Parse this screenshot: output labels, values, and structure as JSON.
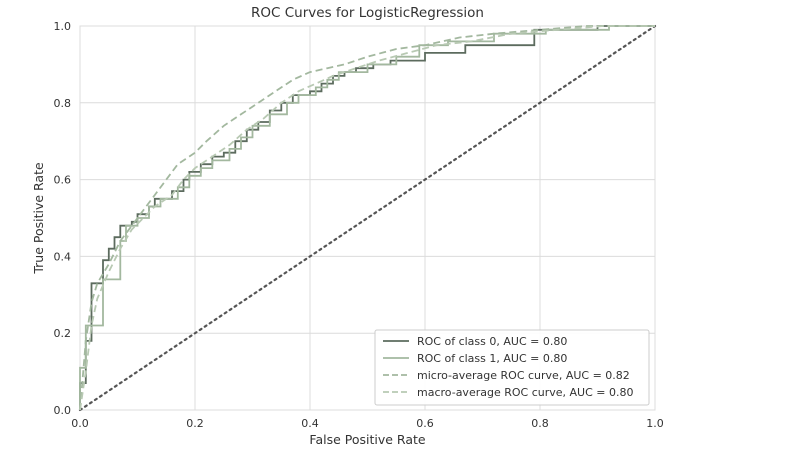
{
  "chart_data": {
    "type": "line",
    "title": "ROC Curves for LogisticRegression",
    "xlabel": "False Positive Rate",
    "ylabel": "True Positive Rate",
    "xlim": [
      0.0,
      1.0
    ],
    "ylim": [
      0.0,
      1.0
    ],
    "xticks": [
      "0.0",
      "0.2",
      "0.4",
      "0.6",
      "0.8",
      "1.0"
    ],
    "yticks": [
      "0.0",
      "0.2",
      "0.4",
      "0.6",
      "0.8",
      "1.0"
    ],
    "grid": true,
    "legend_position": "lower-right",
    "series": [
      {
        "name": "ROC of class 0, AUC = 0.80",
        "style": "solid",
        "color": "#5c6b5e",
        "points": [
          [
            0,
            0
          ],
          [
            0,
            0.07
          ],
          [
            0.01,
            0.07
          ],
          [
            0.01,
            0.18
          ],
          [
            0.02,
            0.18
          ],
          [
            0.02,
            0.33
          ],
          [
            0.04,
            0.33
          ],
          [
            0.04,
            0.39
          ],
          [
            0.05,
            0.39
          ],
          [
            0.05,
            0.42
          ],
          [
            0.06,
            0.42
          ],
          [
            0.06,
            0.45
          ],
          [
            0.07,
            0.45
          ],
          [
            0.07,
            0.48
          ],
          [
            0.09,
            0.48
          ],
          [
            0.09,
            0.49
          ],
          [
            0.1,
            0.49
          ],
          [
            0.1,
            0.51
          ],
          [
            0.12,
            0.51
          ],
          [
            0.12,
            0.53
          ],
          [
            0.13,
            0.53
          ],
          [
            0.13,
            0.55
          ],
          [
            0.16,
            0.55
          ],
          [
            0.16,
            0.57
          ],
          [
            0.18,
            0.57
          ],
          [
            0.18,
            0.6
          ],
          [
            0.19,
            0.6
          ],
          [
            0.19,
            0.62
          ],
          [
            0.21,
            0.62
          ],
          [
            0.21,
            0.64
          ],
          [
            0.23,
            0.64
          ],
          [
            0.23,
            0.66
          ],
          [
            0.25,
            0.66
          ],
          [
            0.25,
            0.67
          ],
          [
            0.27,
            0.67
          ],
          [
            0.27,
            0.7
          ],
          [
            0.29,
            0.7
          ],
          [
            0.29,
            0.73
          ],
          [
            0.31,
            0.73
          ],
          [
            0.31,
            0.75
          ],
          [
            0.33,
            0.75
          ],
          [
            0.33,
            0.78
          ],
          [
            0.35,
            0.78
          ],
          [
            0.35,
            0.8
          ],
          [
            0.37,
            0.8
          ],
          [
            0.37,
            0.82
          ],
          [
            0.4,
            0.82
          ],
          [
            0.4,
            0.83
          ],
          [
            0.42,
            0.83
          ],
          [
            0.42,
            0.85
          ],
          [
            0.44,
            0.85
          ],
          [
            0.44,
            0.87
          ],
          [
            0.46,
            0.87
          ],
          [
            0.46,
            0.88
          ],
          [
            0.48,
            0.88
          ],
          [
            0.48,
            0.89
          ],
          [
            0.51,
            0.89
          ],
          [
            0.51,
            0.9
          ],
          [
            0.54,
            0.9
          ],
          [
            0.54,
            0.91
          ],
          [
            0.6,
            0.91
          ],
          [
            0.6,
            0.93
          ],
          [
            0.67,
            0.93
          ],
          [
            0.67,
            0.95
          ],
          [
            0.79,
            0.95
          ],
          [
            0.79,
            0.99
          ],
          [
            0.9,
            0.99
          ],
          [
            0.9,
            1.0
          ],
          [
            1.0,
            1.0
          ]
        ]
      },
      {
        "name": "ROC of class 1, AUC = 0.80",
        "style": "solid",
        "color": "#a3b89f",
        "points": [
          [
            0,
            0
          ],
          [
            0,
            0.11
          ],
          [
            0.01,
            0.11
          ],
          [
            0.01,
            0.22
          ],
          [
            0.04,
            0.22
          ],
          [
            0.04,
            0.34
          ],
          [
            0.07,
            0.34
          ],
          [
            0.07,
            0.44
          ],
          [
            0.08,
            0.44
          ],
          [
            0.08,
            0.48
          ],
          [
            0.1,
            0.48
          ],
          [
            0.1,
            0.5
          ],
          [
            0.12,
            0.5
          ],
          [
            0.12,
            0.53
          ],
          [
            0.14,
            0.53
          ],
          [
            0.14,
            0.55
          ],
          [
            0.17,
            0.55
          ],
          [
            0.17,
            0.58
          ],
          [
            0.19,
            0.58
          ],
          [
            0.19,
            0.61
          ],
          [
            0.21,
            0.61
          ],
          [
            0.21,
            0.63
          ],
          [
            0.23,
            0.63
          ],
          [
            0.23,
            0.65
          ],
          [
            0.26,
            0.65
          ],
          [
            0.26,
            0.68
          ],
          [
            0.28,
            0.68
          ],
          [
            0.28,
            0.71
          ],
          [
            0.3,
            0.71
          ],
          [
            0.3,
            0.74
          ],
          [
            0.33,
            0.74
          ],
          [
            0.33,
            0.77
          ],
          [
            0.36,
            0.77
          ],
          [
            0.36,
            0.8
          ],
          [
            0.38,
            0.8
          ],
          [
            0.38,
            0.82
          ],
          [
            0.41,
            0.82
          ],
          [
            0.41,
            0.84
          ],
          [
            0.43,
            0.84
          ],
          [
            0.43,
            0.86
          ],
          [
            0.45,
            0.86
          ],
          [
            0.45,
            0.88
          ],
          [
            0.5,
            0.88
          ],
          [
            0.5,
            0.9
          ],
          [
            0.55,
            0.9
          ],
          [
            0.55,
            0.92
          ],
          [
            0.59,
            0.92
          ],
          [
            0.59,
            0.95
          ],
          [
            0.64,
            0.95
          ],
          [
            0.64,
            0.96
          ],
          [
            0.72,
            0.96
          ],
          [
            0.72,
            0.98
          ],
          [
            0.81,
            0.98
          ],
          [
            0.81,
            0.99
          ],
          [
            0.92,
            0.99
          ],
          [
            0.92,
            1.0
          ],
          [
            1.0,
            1.0
          ]
        ]
      },
      {
        "name": "micro-average ROC curve, AUC = 0.82",
        "style": "dashed",
        "color": "#a3b89f",
        "points": [
          [
            0,
            0
          ],
          [
            0.01,
            0.18
          ],
          [
            0.02,
            0.28
          ],
          [
            0.03,
            0.33
          ],
          [
            0.05,
            0.38
          ],
          [
            0.07,
            0.44
          ],
          [
            0.09,
            0.48
          ],
          [
            0.11,
            0.52
          ],
          [
            0.13,
            0.56
          ],
          [
            0.15,
            0.6
          ],
          [
            0.17,
            0.64
          ],
          [
            0.2,
            0.67
          ],
          [
            0.22,
            0.7
          ],
          [
            0.25,
            0.74
          ],
          [
            0.28,
            0.77
          ],
          [
            0.31,
            0.8
          ],
          [
            0.34,
            0.83
          ],
          [
            0.37,
            0.86
          ],
          [
            0.4,
            0.88
          ],
          [
            0.43,
            0.89
          ],
          [
            0.46,
            0.9
          ],
          [
            0.5,
            0.92
          ],
          [
            0.55,
            0.94
          ],
          [
            0.6,
            0.95
          ],
          [
            0.66,
            0.97
          ],
          [
            0.72,
            0.98
          ],
          [
            0.8,
            0.99
          ],
          [
            0.88,
            1.0
          ],
          [
            1.0,
            1.0
          ]
        ]
      },
      {
        "name": "macro-average ROC curve, AUC = 0.80",
        "style": "dashed",
        "color": "#b8c9b3",
        "points": [
          [
            0,
            0
          ],
          [
            0.01,
            0.1
          ],
          [
            0.02,
            0.22
          ],
          [
            0.03,
            0.29
          ],
          [
            0.05,
            0.36
          ],
          [
            0.07,
            0.42
          ],
          [
            0.09,
            0.47
          ],
          [
            0.11,
            0.5
          ],
          [
            0.13,
            0.53
          ],
          [
            0.16,
            0.56
          ],
          [
            0.18,
            0.6
          ],
          [
            0.2,
            0.63
          ],
          [
            0.23,
            0.66
          ],
          [
            0.26,
            0.69
          ],
          [
            0.29,
            0.73
          ],
          [
            0.32,
            0.76
          ],
          [
            0.35,
            0.8
          ],
          [
            0.38,
            0.83
          ],
          [
            0.41,
            0.85
          ],
          [
            0.44,
            0.87
          ],
          [
            0.48,
            0.89
          ],
          [
            0.52,
            0.91
          ],
          [
            0.57,
            0.93
          ],
          [
            0.62,
            0.95
          ],
          [
            0.68,
            0.96
          ],
          [
            0.75,
            0.98
          ],
          [
            0.83,
            0.99
          ],
          [
            0.91,
            1.0
          ],
          [
            1.0,
            1.0
          ]
        ]
      }
    ],
    "reference_line": {
      "style": "dotted",
      "color": "#555555",
      "points": [
        [
          0,
          0
        ],
        [
          1,
          1
        ]
      ]
    }
  }
}
